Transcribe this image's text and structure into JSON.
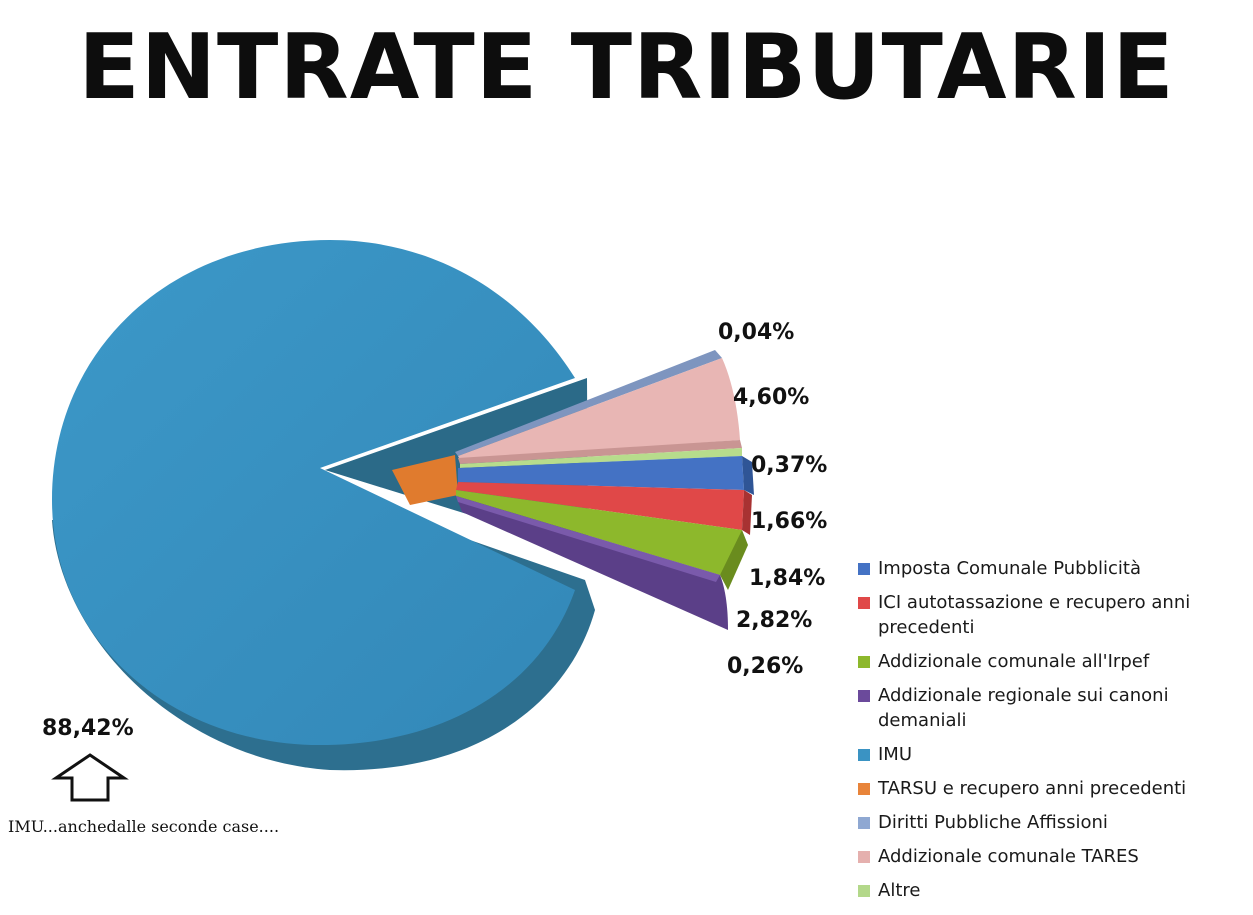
{
  "title": "ENTRATE TRIBUTARIE",
  "note": "IMU...anchedalle seconde case....",
  "chart_data": {
    "type": "pie",
    "title": "ENTRATE TRIBUTARIE",
    "legend_position": "right-bottom",
    "slices": [
      {
        "name": "Imposta Comunale Pubblicità",
        "value": 1.66,
        "label": "1,66%",
        "color": "#4472c4"
      },
      {
        "name": "ICI autotassazione e recupero anni precedenti",
        "value": 1.84,
        "label": "1,84%",
        "color": "#e04848"
      },
      {
        "name": "Addizionale comunale all'Irpef",
        "value": 2.82,
        "label": "2,82%",
        "color": "#8db82c"
      },
      {
        "name": "Addizionale regionale sui canoni demaniali",
        "value": 0.26,
        "label": "0,26%",
        "color": "#6b4a9b"
      },
      {
        "name": "IMU",
        "value": 88.42,
        "label": "88,42%",
        "color": "#3a93c3"
      },
      {
        "name": "TARSU e recupero anni precedenti",
        "value": 0.0,
        "label": "",
        "color": "#e8843a"
      },
      {
        "name": "Diritti Pubbliche Affissioni",
        "value": 0.04,
        "label": "0,04%",
        "color": "#8fa8d2"
      },
      {
        "name": "Addizionale comunale TARES",
        "value": 4.6,
        "label": "4,60%",
        "color": "#e5b0ae"
      },
      {
        "name": "Altre",
        "value": 0.37,
        "label": "0,37%",
        "color": "#b3d88a"
      }
    ]
  },
  "arrow_icon": "up-arrow-outline-icon"
}
